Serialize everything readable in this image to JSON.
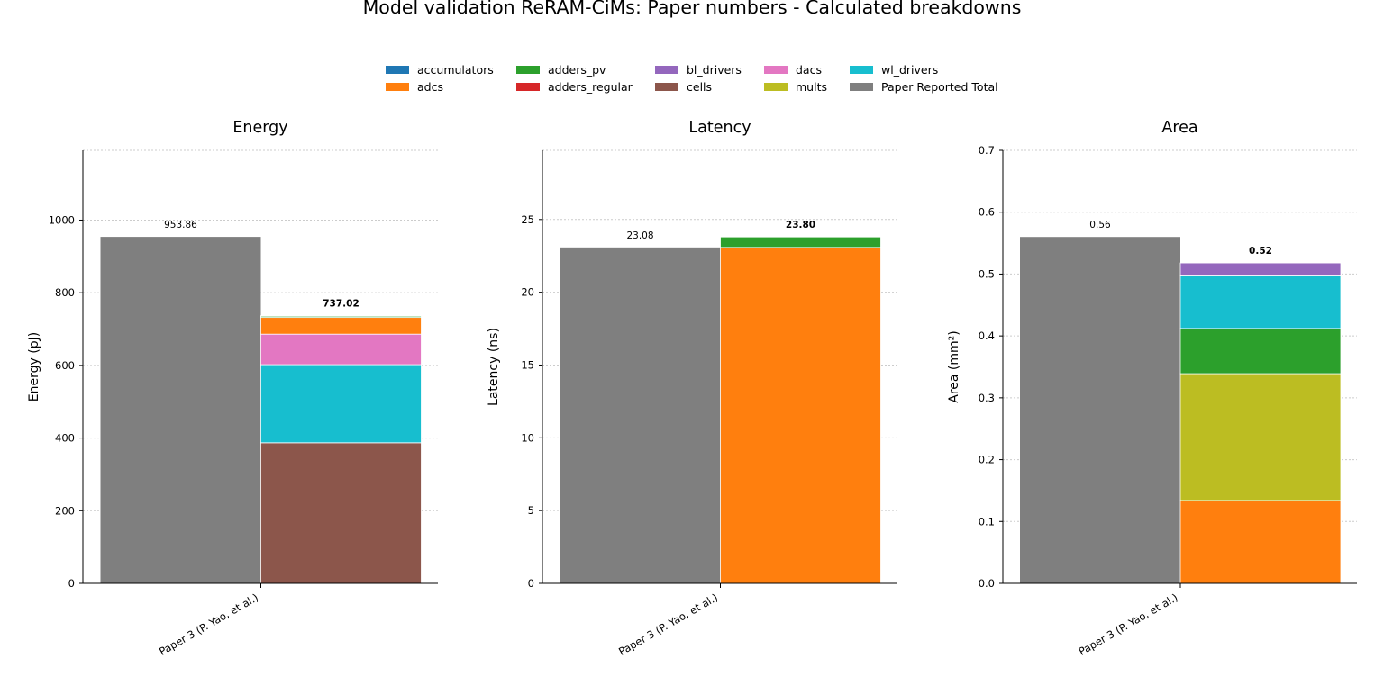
{
  "figure_title": "Model validation ReRAM-CiMs: Paper numbers - Calculated breakdowns",
  "legend": [
    {
      "label": "accumulators",
      "color": "#1f77b4"
    },
    {
      "label": "adcs",
      "color": "#ff7f0e"
    },
    {
      "label": "adders_pv",
      "color": "#2ca02c"
    },
    {
      "label": "adders_regular",
      "color": "#d62728"
    },
    {
      "label": "bl_drivers",
      "color": "#9467bd"
    },
    {
      "label": "cells",
      "color": "#8c564b"
    },
    {
      "label": "dacs",
      "color": "#e377c2"
    },
    {
      "label": "mults",
      "color": "#bcbd22"
    },
    {
      "label": "wl_drivers",
      "color": "#17becf"
    },
    {
      "label": "Paper Reported Total",
      "color": "#7f7f7f"
    }
  ],
  "chart_data": [
    {
      "type": "bar",
      "stacked": true,
      "title": "Energy",
      "ylabel": "Energy (pJ)",
      "xlabel": "",
      "categories": [
        "Paper 3 (P. Yao, et al.)"
      ],
      "ylim": [
        0,
        1192
      ],
      "yticks": [
        "0",
        "200",
        "400",
        "600",
        "800",
        "1000"
      ],
      "grid": true,
      "paper_total": {
        "value": 953.86,
        "label": "953.86"
      },
      "calculated_total": {
        "value": 737.02,
        "label": "737.02"
      },
      "series": [
        {
          "name": "cells",
          "values": [
            387
          ]
        },
        {
          "name": "wl_drivers",
          "values": [
            215
          ]
        },
        {
          "name": "dacs",
          "values": [
            84
          ]
        },
        {
          "name": "adcs",
          "values": [
            46
          ]
        },
        {
          "name": "adders_pv",
          "values": [
            3.5
          ]
        },
        {
          "name": "accumulators",
          "values": [
            1.5
          ]
        }
      ]
    },
    {
      "type": "bar",
      "stacked": true,
      "title": "Latency",
      "ylabel": "Latency (ns)",
      "xlabel": "",
      "categories": [
        "Paper 3 (P. Yao, et al.)"
      ],
      "ylim": [
        0,
        29.75
      ],
      "yticks": [
        "0",
        "5",
        "10",
        "15",
        "20",
        "25"
      ],
      "grid": true,
      "paper_total": {
        "value": 23.08,
        "label": "23.08"
      },
      "calculated_total": {
        "value": 23.8,
        "label": "23.80"
      },
      "series": [
        {
          "name": "adcs",
          "values": [
            23.08
          ]
        },
        {
          "name": "adders_pv",
          "values": [
            0.72
          ]
        }
      ]
    },
    {
      "type": "bar",
      "stacked": true,
      "title": "Area",
      "ylabel": "Area (mm²)",
      "xlabel": "",
      "categories": [
        "Paper 3 (P. Yao, et al.)"
      ],
      "ylim": [
        0,
        0.7
      ],
      "yticks": [
        "0.0",
        "0.1",
        "0.2",
        "0.3",
        "0.4",
        "0.5",
        "0.6",
        "0.7"
      ],
      "grid": true,
      "paper_total": {
        "value": 0.56,
        "label": "0.56"
      },
      "calculated_total": {
        "value": 0.518,
        "label": "0.52"
      },
      "series": [
        {
          "name": "adcs",
          "values": [
            0.134
          ]
        },
        {
          "name": "mults",
          "values": [
            0.205
          ]
        },
        {
          "name": "adders_pv",
          "values": [
            0.073
          ]
        },
        {
          "name": "wl_drivers",
          "values": [
            0.085
          ]
        },
        {
          "name": "bl_drivers",
          "values": [
            0.021
          ]
        }
      ]
    }
  ]
}
